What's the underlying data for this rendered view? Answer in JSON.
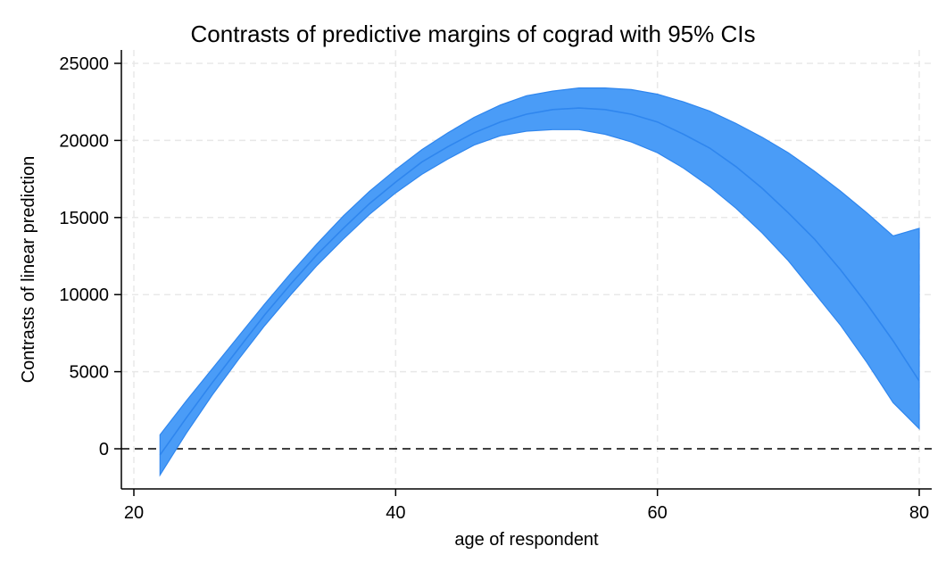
{
  "chart_data": {
    "type": "area",
    "title": "Contrasts of predictive margins of cograd with 95% CIs",
    "xlabel": "age of respondent",
    "ylabel": "Contrasts of linear prediction",
    "xlim": [
      20,
      81
    ],
    "ylim": [
      -2500,
      25800
    ],
    "xticks": [
      20,
      40,
      60,
      80
    ],
    "yticks": [
      0,
      5000,
      10000,
      15000,
      20000,
      25000
    ],
    "grid": true,
    "reference_line": {
      "y": 0,
      "style": "dashed"
    },
    "colors": {
      "band": "#4a9cf7",
      "band_edge": "#2f86ee",
      "line": "#2f86ee",
      "grid": "#e8e8e8",
      "axis": "#000000"
    },
    "series": [
      {
        "x": [
          22,
          24,
          26,
          28,
          30,
          32,
          34,
          36,
          38,
          40,
          42,
          44,
          46,
          48,
          50,
          52,
          54,
          56,
          58,
          60,
          62,
          64,
          66,
          68,
          70,
          72,
          74,
          76,
          78,
          80
        ],
        "y": [
          -400,
          2000,
          4300,
          6500,
          8700,
          10700,
          12600,
          14300,
          15900,
          17300,
          18600,
          19600,
          20500,
          21200,
          21700,
          22000,
          22100,
          22000,
          21700,
          21200,
          20400,
          19500,
          18300,
          16900,
          15300,
          13600,
          11600,
          9400,
          7000,
          4400
        ],
        "lower": [
          -1700,
          1000,
          3500,
          5800,
          8000,
          10000,
          11900,
          13600,
          15200,
          16600,
          17800,
          18800,
          19700,
          20300,
          20600,
          20700,
          20700,
          20400,
          19900,
          19200,
          18200,
          17000,
          15600,
          14000,
          12200,
          10100,
          8000,
          5600,
          3000,
          1300
        ],
        "upper": [
          900,
          3100,
          5200,
          7300,
          9400,
          11400,
          13300,
          15100,
          16700,
          18100,
          19400,
          20500,
          21500,
          22300,
          22900,
          23200,
          23400,
          23400,
          23300,
          23000,
          22500,
          21900,
          21100,
          20200,
          19200,
          18000,
          16700,
          15300,
          13800,
          14300
        ]
      }
    ]
  }
}
